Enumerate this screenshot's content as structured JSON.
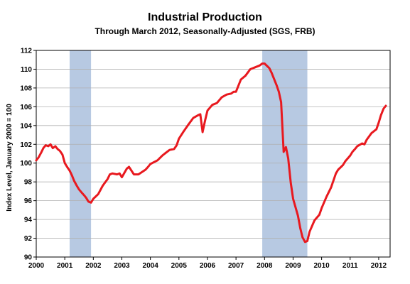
{
  "chart_data": {
    "type": "line",
    "title": "Industrial Production",
    "subtitle": "Through March 2012, Seasonally-Adjusted (SGS, FRB)",
    "xlabel": "",
    "ylabel": "Index Level, January 2000 = 100",
    "xlim": [
      2000,
      2012.4
    ],
    "ylim": [
      90,
      112
    ],
    "x_ticks": [
      "2000",
      "2001",
      "2002",
      "2003",
      "2004",
      "2005",
      "2006",
      "2007",
      "2008",
      "2009",
      "2010",
      "2011",
      "2012"
    ],
    "y_ticks": [
      90,
      92,
      94,
      96,
      98,
      100,
      102,
      104,
      106,
      108,
      110,
      112
    ],
    "grid": "horizontal",
    "recessions": [
      [
        2001.17,
        2001.92
      ],
      [
        2007.92,
        2009.5
      ]
    ],
    "colors": {
      "line": "#e8191f",
      "recession": "#b7c9e2",
      "grid": "#b0b0b0"
    },
    "series": [
      {
        "x": [
          2000.0,
          2000.08,
          2000.17,
          2000.25,
          2000.33,
          2000.42,
          2000.5,
          2000.58,
          2000.67,
          2000.75,
          2000.83,
          2000.92,
          2001.0,
          2001.08,
          2001.17,
          2001.25,
          2001.33,
          2001.42,
          2001.5,
          2001.58,
          2001.67,
          2001.75,
          2001.83,
          2001.92,
          2002.0,
          2002.17,
          2002.33,
          2002.5,
          2002.58,
          2002.67,
          2002.83,
          2002.92,
          2003.0,
          2003.17,
          2003.25,
          2003.42,
          2003.58,
          2003.83,
          2003.92,
          2004.0,
          2004.25,
          2004.42,
          2004.5,
          2004.67,
          2004.83,
          2004.92,
          2005.0,
          2005.17,
          2005.33,
          2005.5,
          2005.67,
          2005.75,
          2005.83,
          2005.92,
          2006.0,
          2006.17,
          2006.33,
          2006.5,
          2006.67,
          2006.83,
          2006.92,
          2007.0,
          2007.17,
          2007.33,
          2007.5,
          2007.67,
          2007.83,
          2007.92,
          2008.0,
          2008.17,
          2008.25,
          2008.42,
          2008.5,
          2008.58,
          2008.67,
          2008.75,
          2008.83,
          2008.92,
          2009.0,
          2009.17,
          2009.25,
          2009.33,
          2009.42,
          2009.5,
          2009.58,
          2009.75,
          2009.92,
          2010.0,
          2010.17,
          2010.33,
          2010.5,
          2010.58,
          2010.75,
          2010.83,
          2011.0,
          2011.08,
          2011.17,
          2011.25,
          2011.42,
          2011.5,
          2011.58,
          2011.75,
          2011.92,
          2012.0,
          2012.08,
          2012.17,
          2012.25
        ],
        "y": [
          100.3,
          100.6,
          101.1,
          101.6,
          101.9,
          101.8,
          102.0,
          101.6,
          101.8,
          101.5,
          101.3,
          100.9,
          100.0,
          99.6,
          99.2,
          98.7,
          98.1,
          97.6,
          97.2,
          96.9,
          96.6,
          96.3,
          95.9,
          95.8,
          96.2,
          96.7,
          97.6,
          98.3,
          98.8,
          98.9,
          98.8,
          98.9,
          98.5,
          99.4,
          99.6,
          98.8,
          98.8,
          99.3,
          99.6,
          99.9,
          100.3,
          100.8,
          101.0,
          101.4,
          101.5,
          101.9,
          102.6,
          103.4,
          104.1,
          104.8,
          105.1,
          105.2,
          103.3,
          104.6,
          105.6,
          106.2,
          106.4,
          107.0,
          107.3,
          107.4,
          107.6,
          107.6,
          108.9,
          109.3,
          110.0,
          110.2,
          110.4,
          110.6,
          110.6,
          110.1,
          109.6,
          108.3,
          107.6,
          106.5,
          101.2,
          101.7,
          100.5,
          97.9,
          96.2,
          94.4,
          93.1,
          92.1,
          91.6,
          91.7,
          92.7,
          93.9,
          94.5,
          95.2,
          96.4,
          97.4,
          98.9,
          99.3,
          99.8,
          100.2,
          100.8,
          101.2,
          101.5,
          101.8,
          102.1,
          102.0,
          102.5,
          103.2,
          103.6,
          104.3,
          105.1,
          105.8,
          106.1
        ]
      }
    ]
  }
}
